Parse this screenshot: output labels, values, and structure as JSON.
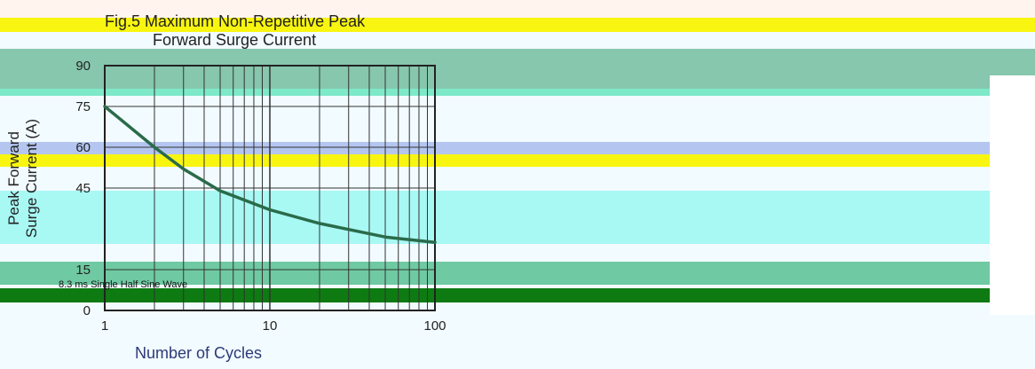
{
  "chart_data": {
    "type": "line",
    "title_line1": "Fig.5 Maximum Non-Repetitive Peak",
    "title_line2": "Forward Surge Current",
    "xlabel": "Number of Cycles",
    "ylabel": "Peak Forward Surge Current (A)",
    "x_scale": "log",
    "xlim": [
      1,
      100
    ],
    "ylim": [
      0,
      90
    ],
    "grid": true,
    "x_ticks": [
      1,
      10,
      100
    ],
    "y_ticks": [
      0,
      15,
      45,
      60,
      75,
      90
    ],
    "annotation": "8.3 ms Single Half Sine Wave",
    "series": [
      {
        "x": [
          1,
          2,
          3,
          5,
          10,
          20,
          50,
          100
        ],
        "y": [
          75,
          60,
          52,
          44,
          37,
          32,
          27,
          25
        ]
      }
    ]
  },
  "colors": {
    "curve": "#2a6b4a",
    "axis": "#222222",
    "grid": "#333333"
  }
}
